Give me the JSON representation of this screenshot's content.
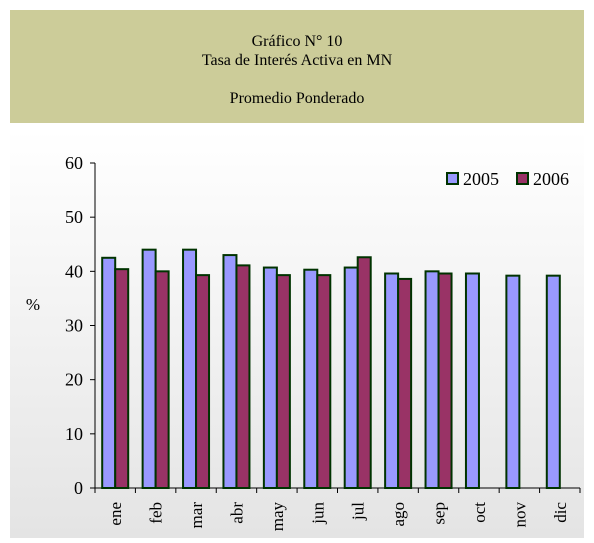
{
  "chart_data": {
    "type": "bar",
    "title": "Gráfico N° 10",
    "subtitle": "Tasa de Interés Activa en MN",
    "note": "Promedio Ponderado",
    "y_label": "%",
    "categories": [
      "ene",
      "feb",
      "mar",
      "abr",
      "may",
      "jun",
      "jul",
      "ago",
      "sep",
      "oct",
      "nov",
      "dic"
    ],
    "series": [
      {
        "name": "2005",
        "color": "#9999ff",
        "values": [
          42.5,
          44,
          44,
          43,
          40.7,
          40.3,
          40.7,
          39.6,
          40,
          39.6,
          39.2,
          39.2
        ]
      },
      {
        "name": "2006",
        "color": "#993366",
        "values": [
          40.4,
          40,
          39.3,
          41.1,
          39.3,
          39.3,
          42.6,
          38.6,
          39.6,
          null,
          null,
          null
        ]
      }
    ],
    "ylim": [
      0,
      60
    ],
    "yticks": [
      0,
      10,
      20,
      30,
      40,
      50,
      60
    ],
    "grid": false,
    "legend": "top-right"
  }
}
